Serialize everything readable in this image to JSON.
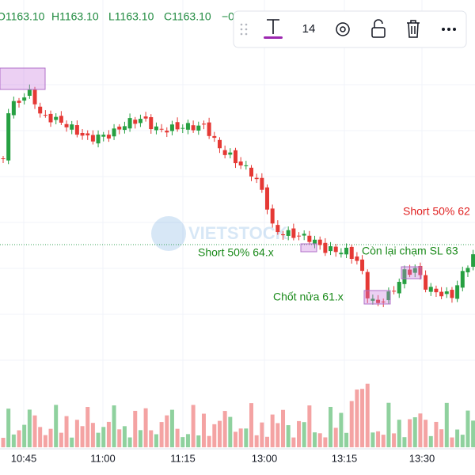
{
  "header": {
    "open": "O1163.10",
    "high": "H1163.10",
    "low": "L1163.10",
    "close": "C1163.10",
    "change": "−0"
  },
  "toolbar": {
    "font_size": "14"
  },
  "annotations": [
    {
      "text": "Short 50% 62"
    },
    {
      "text": "Short 50% 64.x"
    },
    {
      "text": "Còn lại chạm SL 63"
    },
    {
      "text": "Chốt nửa 61.x"
    }
  ],
  "time_axis": [
    "10:45",
    "11:00",
    "11:15",
    "13:00",
    "13:15",
    "13:30"
  ]
}
